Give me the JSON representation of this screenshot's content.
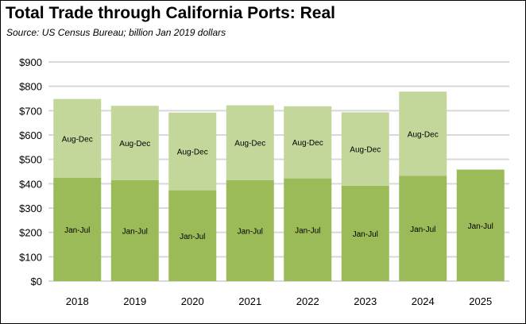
{
  "chart_data": {
    "type": "bar",
    "stacked": true,
    "title": "Total Trade through California Ports:  Real",
    "subtitle": "Source:  US Census Bureau; billion Jan 2019 dollars",
    "xlabel": "",
    "ylabel": "",
    "categories": [
      "2018",
      "2019",
      "2020",
      "2021",
      "2022",
      "2023",
      "2024",
      "2025"
    ],
    "series": [
      {
        "name": "Jan-Jul",
        "color": "#9bbb59",
        "values": [
          424,
          415,
          373,
          415,
          422,
          392,
          432,
          458
        ]
      },
      {
        "name": "Aug-Dec",
        "color": "#c4d79b",
        "values": [
          324,
          305,
          319,
          307,
          296,
          301,
          346,
          null
        ]
      }
    ],
    "ylim": [
      0,
      900
    ],
    "yticks": [
      0,
      100,
      200,
      300,
      400,
      500,
      600,
      700,
      800,
      900
    ],
    "ytick_labels": [
      "$0",
      "$100",
      "$200",
      "$300",
      "$400",
      "$500",
      "$600",
      "$700",
      "$800",
      "$900"
    ],
    "grid": true,
    "legend": "none"
  }
}
